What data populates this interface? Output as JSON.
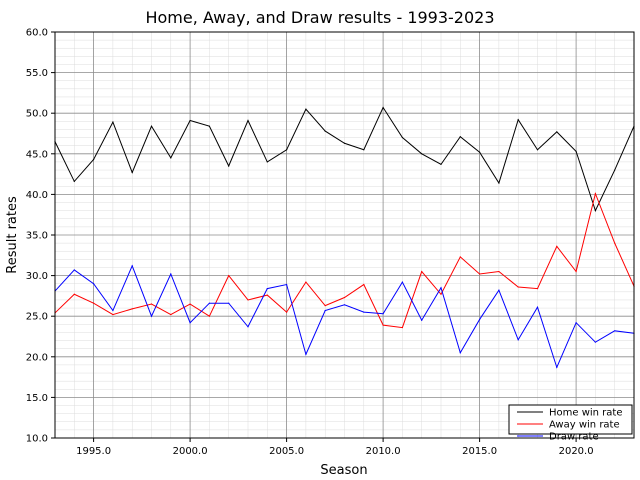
{
  "chart_data": {
    "type": "line",
    "title": "Home, Away, and Draw results - 1993-2023",
    "xlabel": "Season",
    "ylabel": "Result rates",
    "xlim": [
      1993,
      2023
    ],
    "ylim": [
      10.0,
      60.0
    ],
    "x_ticks": [
      "1995.0",
      "2000.0",
      "2005.0",
      "2010.0",
      "2015.0",
      "2020.0"
    ],
    "y_ticks": [
      "10.0",
      "15.0",
      "20.0",
      "25.0",
      "30.0",
      "35.0",
      "40.0",
      "45.0",
      "50.0",
      "55.0",
      "60.0"
    ],
    "x_tick_values": [
      1995,
      2000,
      2005,
      2010,
      2015,
      2020
    ],
    "y_tick_values": [
      10,
      15,
      20,
      25,
      30,
      35,
      40,
      45,
      50,
      55,
      60
    ],
    "grid": true,
    "minor_grid": true,
    "legend_position": "bottom-right",
    "x": [
      1993,
      1994,
      1995,
      1996,
      1997,
      1998,
      1999,
      2000,
      2001,
      2002,
      2003,
      2004,
      2005,
      2006,
      2007,
      2008,
      2009,
      2010,
      2011,
      2012,
      2013,
      2014,
      2015,
      2016,
      2017,
      2018,
      2019,
      2020,
      2021,
      2022,
      2023
    ],
    "series": [
      {
        "name": "Home win rate",
        "color": "#000000",
        "values": [
          46.5,
          41.6,
          44.3,
          48.9,
          42.7,
          48.4,
          44.5,
          49.1,
          48.4,
          43.5,
          49.1,
          44.0,
          45.5,
          50.5,
          47.8,
          46.3,
          45.5,
          50.7,
          47.0,
          45.0,
          43.7,
          47.1,
          45.2,
          41.4,
          49.2,
          45.5,
          47.7,
          45.3,
          38.0,
          43.0,
          48.4
        ]
      },
      {
        "name": "Away win rate",
        "color": "#ff0000",
        "values": [
          25.4,
          27.7,
          26.6,
          25.2,
          25.9,
          26.5,
          25.2,
          26.5,
          25.0,
          30.0,
          27.0,
          27.6,
          25.5,
          29.2,
          26.3,
          27.3,
          28.9,
          23.9,
          23.6,
          30.5,
          27.7,
          32.3,
          30.2,
          30.5,
          28.6,
          28.4,
          33.6,
          30.5,
          40.1,
          34.0,
          28.7
        ]
      },
      {
        "name": "Draw rate",
        "color": "#0000ff",
        "values": [
          28.1,
          30.7,
          29.0,
          25.7,
          31.2,
          25.0,
          30.2,
          24.2,
          26.6,
          26.6,
          23.7,
          28.4,
          28.9,
          20.3,
          25.7,
          26.4,
          25.5,
          25.3,
          29.2,
          24.5,
          28.5,
          20.5,
          24.6,
          28.2,
          22.1,
          26.1,
          18.7,
          24.2,
          21.8,
          23.2,
          22.9
        ]
      }
    ]
  }
}
